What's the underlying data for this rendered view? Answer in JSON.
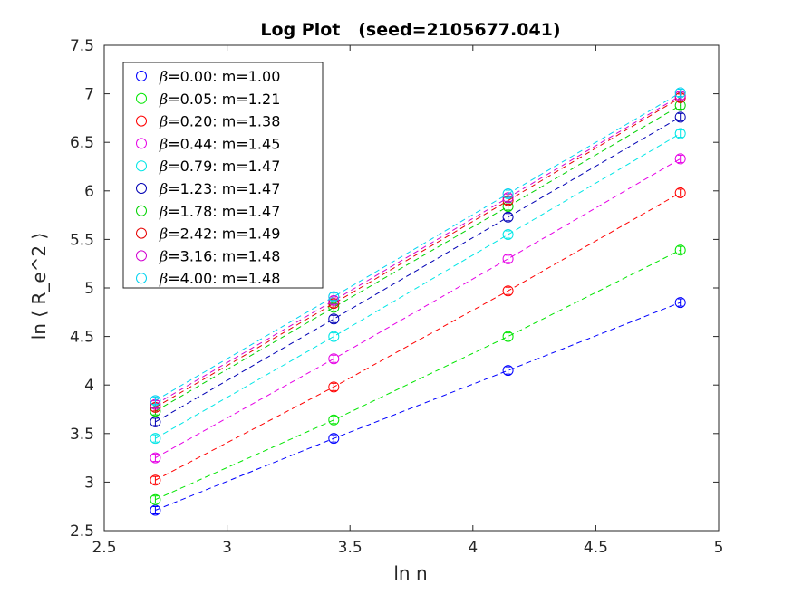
{
  "chart_data": {
    "type": "scatter",
    "title": "Log Plot   (seed=2105677.041)",
    "xlabel": "ln n",
    "ylabel": "ln ⟨ R_e^2 ⟩",
    "xlim": [
      2.5,
      5
    ],
    "ylim": [
      2.5,
      7.5
    ],
    "xticks": [
      "2.5",
      "3",
      "3.5",
      "4",
      "4.5",
      "5"
    ],
    "yticks": [
      "2.5",
      "3",
      "3.5",
      "4",
      "4.5",
      "5",
      "5.5",
      "6",
      "6.5",
      "7",
      "7.5"
    ],
    "x": [
      2.708,
      3.434,
      4.143,
      4.844
    ],
    "legend_position": "top-left",
    "series": [
      {
        "name": "β=0.00: m=1.00",
        "beta_symbol": "β",
        "label": "=0.00: m=1.00",
        "color": "#0000ff",
        "values": [
          2.71,
          3.45,
          4.15,
          4.85
        ]
      },
      {
        "name": "β=0.05: m=1.21",
        "beta_symbol": "β",
        "label": "=0.05: m=1.21",
        "color": "#00e600",
        "values": [
          2.82,
          3.64,
          4.5,
          5.39
        ]
      },
      {
        "name": "β=0.20: m=1.38",
        "beta_symbol": "β",
        "label": "=0.20: m=1.38",
        "color": "#ff0000",
        "values": [
          3.02,
          3.98,
          4.97,
          5.98
        ]
      },
      {
        "name": "β=0.44: m=1.45",
        "beta_symbol": "β",
        "label": "=0.44: m=1.45",
        "color": "#e600e6",
        "values": [
          3.25,
          4.27,
          5.3,
          6.33
        ]
      },
      {
        "name": "β=0.79: m=1.47",
        "beta_symbol": "β",
        "label": "=0.79: m=1.47",
        "color": "#00e6e6",
        "values": [
          3.45,
          4.5,
          5.55,
          6.59
        ]
      },
      {
        "name": "β=1.23: m=1.47",
        "beta_symbol": "β",
        "label": "=1.23: m=1.47",
        "color": "#0000b4",
        "values": [
          3.62,
          4.68,
          5.73,
          6.76
        ]
      },
      {
        "name": "β=1.78: m=1.47",
        "beta_symbol": "β",
        "label": "=1.78: m=1.47",
        "color": "#00d200",
        "values": [
          3.73,
          4.8,
          5.84,
          6.88
        ]
      },
      {
        "name": "β=2.42: m=1.49",
        "beta_symbol": "β",
        "label": "=2.42: m=1.49",
        "color": "#e60000",
        "values": [
          3.77,
          4.84,
          5.9,
          6.96
        ]
      },
      {
        "name": "β=3.16: m=1.48",
        "beta_symbol": "β",
        "label": "=3.16: m=1.48",
        "color": "#d200d2",
        "values": [
          3.8,
          4.87,
          5.93,
          6.98
        ]
      },
      {
        "name": "β=4.00: m=1.48",
        "beta_symbol": "β",
        "label": "=4.00: m=1.48",
        "color": "#00d2f0",
        "values": [
          3.84,
          4.91,
          5.97,
          7.01
        ]
      }
    ]
  }
}
